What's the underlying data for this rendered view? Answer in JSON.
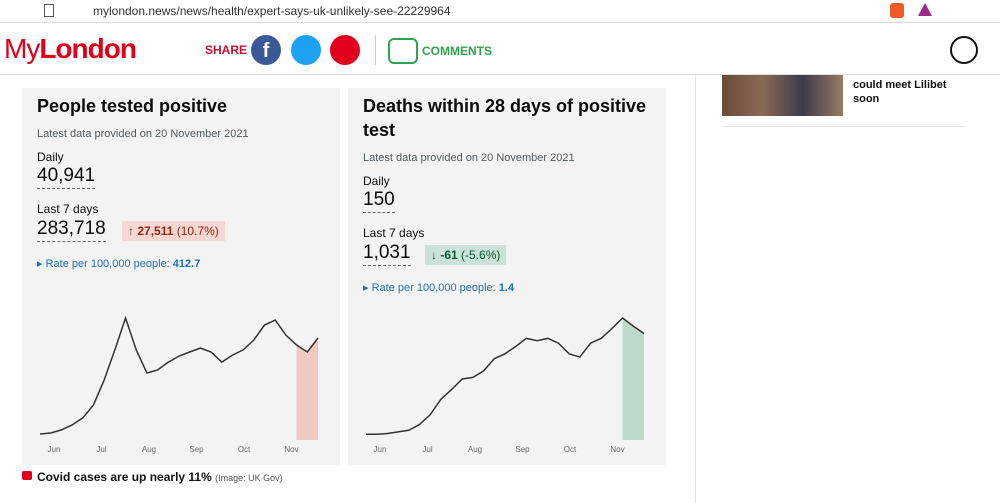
{
  "browser": {
    "url": "mylondon.news/news/health/expert-says-uk-unlikely-see-22229964"
  },
  "header": {
    "logo_my": "My",
    "logo_london": "London",
    "share": "SHARE",
    "comments": "COMMENTS"
  },
  "cards": [
    {
      "title": "People tested positive",
      "updated": "Latest data provided on 20 November 2021",
      "daily_label": "Daily",
      "daily": "40,941",
      "week_label": "Last 7 days",
      "week": "283,718",
      "change": "27,511",
      "change_pct": "(10.7%)",
      "rate_label": "Rate per 100,000 people:",
      "rate": "412.7",
      "chart": {
        "type": "line",
        "color": "#333333",
        "highlight": "#e8998a",
        "months": [
          "Jun",
          "Jul",
          "Aug",
          "Sep",
          "Oct",
          "Nov"
        ],
        "values": [
          2300,
          2700,
          3900,
          5800,
          8500,
          13500,
          23100,
          34700,
          47000,
          34700,
          25800,
          27000,
          30000,
          32300,
          33900,
          35400,
          33900,
          30000,
          32700,
          34700,
          38500,
          44300,
          46200,
          40400,
          36600,
          33900,
          39300
        ]
      }
    },
    {
      "title": "Deaths within 28 days of positive test",
      "updated": "Latest data provided on 20 November 2021",
      "daily_label": "Daily",
      "daily": "150",
      "week_label": "Last 7 days",
      "week": "1,031",
      "change": "-61",
      "change_pct": "(-5.6%)",
      "rate_label": "Rate per 100,000 people:",
      "rate": "1.4",
      "chart": {
        "type": "line",
        "color": "#333333",
        "highlight": "#7fb99a",
        "months": [
          "Jun",
          "Jul",
          "Aug",
          "Sep",
          "Oct",
          "Nov"
        ],
        "values": [
          7,
          7,
          8,
          10,
          12,
          19,
          31,
          50,
          62,
          75,
          77,
          85,
          100,
          106,
          115,
          125,
          122,
          125,
          119,
          106,
          102,
          119,
          125,
          137,
          150,
          140,
          131
        ]
      }
    }
  ],
  "caption": {
    "text": "Covid cases are up nearly 11%",
    "credit": "(Image: UK Gov)"
  },
  "sidebar": {
    "headline": "could meet Lilibet soon"
  }
}
